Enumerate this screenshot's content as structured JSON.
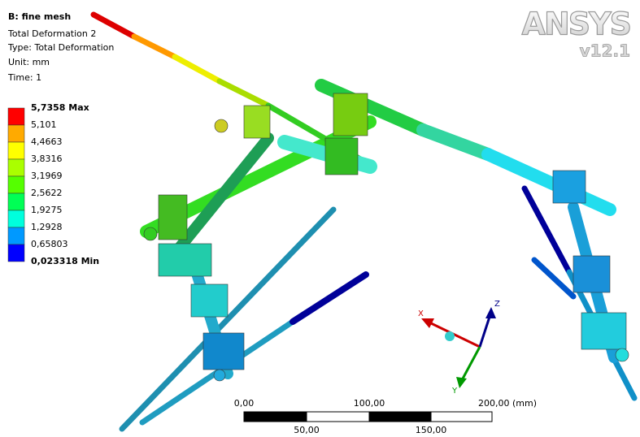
{
  "header": {
    "title": "B: fine mesh",
    "lines": [
      "Total Deformation 2",
      "Type: Total Deformation",
      "Unit: mm",
      "Time: 1"
    ]
  },
  "legend": {
    "labels": [
      "5,7358 Max",
      "5,101",
      "4,4663",
      "3,8316",
      "3,1969",
      "2,5622",
      "1,9275",
      "1,2928",
      "0,65803",
      "0,023318 Min"
    ]
  },
  "logo": {
    "name": "ANSYS",
    "version": "v12.1"
  },
  "scale_bar": {
    "top_labels": [
      "0,00",
      "100,00",
      "200,00 (mm)"
    ],
    "bottom_labels": [
      "50,00",
      "150,00"
    ]
  },
  "triad": {
    "x": "X",
    "y": "Y",
    "z": "Z"
  }
}
